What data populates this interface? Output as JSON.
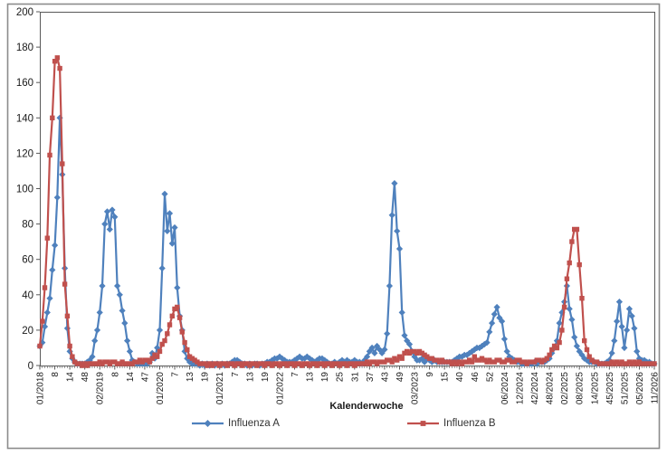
{
  "chart_data": {
    "type": "line",
    "title": "",
    "xlabel": "Kalenderwoche",
    "ylabel": "",
    "ylim": [
      0,
      200
    ],
    "y_tick_step": 20,
    "grid": "none",
    "legend_position": "bottom",
    "n_points": 247,
    "x_label_every_n_points": 6,
    "x_tick_labels": [
      "01/2018",
      "8",
      "14",
      "48",
      "02/2019",
      "8",
      "14",
      "47",
      "01/2020",
      "7",
      "13",
      "19",
      "01/2021",
      "7",
      "13",
      "19",
      "01/2022",
      "7",
      "13",
      "19",
      "25",
      "31",
      "37",
      "43",
      "49",
      "03/2023",
      "9",
      "15",
      "40",
      "46",
      "52",
      "06/2024",
      "12/2024",
      "42/2024",
      "48/2024",
      "02/2025",
      "08/2025",
      "14/2025",
      "45/2025",
      "51/2025",
      "05/2026",
      "11/2026"
    ],
    "series": [
      {
        "name": "Influenza A",
        "color": "#4F81BD",
        "marker": "diamond",
        "values": [
          11,
          13,
          22,
          30,
          38,
          54,
          68,
          95,
          140,
          108,
          55,
          21,
          8,
          4,
          2,
          1,
          1,
          1,
          1,
          2,
          3,
          5,
          14,
          20,
          30,
          45,
          80,
          87,
          77,
          88,
          84,
          45,
          40,
          31,
          24,
          14,
          8,
          3,
          2,
          1,
          1,
          1,
          1,
          1,
          2,
          7,
          4,
          10,
          20,
          55,
          97,
          76,
          86,
          69,
          78,
          44,
          28,
          20,
          8,
          4,
          2,
          1,
          1,
          1,
          0,
          1,
          0,
          1,
          0,
          1,
          0,
          1,
          0,
          1,
          0,
          1,
          1,
          2,
          3,
          3,
          2,
          1,
          1,
          0,
          1,
          0,
          1,
          1,
          0,
          1,
          1,
          2,
          2,
          3,
          4,
          4,
          5,
          4,
          3,
          2,
          2,
          2,
          3,
          4,
          5,
          4,
          4,
          5,
          4,
          3,
          2,
          3,
          4,
          4,
          3,
          2,
          1,
          1,
          2,
          1,
          2,
          3,
          2,
          3,
          2,
          2,
          3,
          2,
          2,
          1,
          3,
          5,
          8,
          10,
          7,
          11,
          9,
          7,
          9,
          18,
          45,
          85,
          103,
          76,
          66,
          30,
          17,
          14,
          12,
          8,
          5,
          3,
          3,
          4,
          2,
          4,
          3,
          2,
          3,
          2,
          2,
          2,
          2,
          2,
          2,
          2,
          3,
          4,
          5,
          5,
          6,
          6,
          7,
          8,
          9,
          10,
          10,
          11,
          12,
          13,
          19,
          24,
          29,
          33,
          27,
          25,
          15,
          8,
          5,
          4,
          3,
          2,
          2,
          1,
          1,
          1,
          1,
          1,
          2,
          1,
          2,
          2,
          2,
          3,
          4,
          7,
          10,
          14,
          24,
          30,
          36,
          45,
          32,
          26,
          16,
          11,
          8,
          6,
          4,
          3,
          2,
          2,
          2,
          1,
          1,
          1,
          1,
          2,
          3,
          7,
          14,
          25,
          36,
          22,
          10,
          20,
          32,
          28,
          21,
          8,
          4,
          3,
          3,
          2,
          2,
          1,
          1
        ]
      },
      {
        "name": "Influenza B",
        "color": "#C0504D",
        "marker": "square",
        "values": [
          11,
          25,
          44,
          72,
          119,
          140,
          172,
          174,
          168,
          114,
          46,
          28,
          11,
          5,
          2,
          1,
          1,
          0,
          1,
          0,
          1,
          1,
          1,
          1,
          2,
          1,
          2,
          2,
          1,
          2,
          2,
          1,
          1,
          2,
          1,
          1,
          1,
          1,
          2,
          2,
          3,
          2,
          3,
          3,
          2,
          4,
          6,
          5,
          8,
          12,
          14,
          18,
          23,
          28,
          32,
          33,
          27,
          19,
          13,
          9,
          5,
          4,
          3,
          2,
          1,
          1,
          1,
          0,
          1,
          0,
          1,
          1,
          0,
          1,
          1,
          0,
          1,
          1,
          0,
          1,
          1,
          0,
          1,
          1,
          0,
          1,
          1,
          0,
          1,
          1,
          0,
          1,
          1,
          0,
          1,
          1,
          0,
          1,
          1,
          0,
          1,
          1,
          0,
          1,
          1,
          0,
          1,
          1,
          0,
          1,
          1,
          0,
          1,
          1,
          0,
          1,
          1,
          0,
          1,
          1,
          0,
          1,
          1,
          0,
          1,
          1,
          0,
          1,
          1,
          1,
          1,
          2,
          1,
          2,
          2,
          1,
          2,
          2,
          2,
          3,
          3,
          2,
          4,
          3,
          5,
          4,
          7,
          8,
          7,
          8,
          8,
          7,
          8,
          7,
          6,
          5,
          4,
          4,
          3,
          3,
          2,
          3,
          2,
          2,
          2,
          1,
          2,
          1,
          2,
          1,
          2,
          2,
          3,
          2,
          5,
          3,
          3,
          4,
          3,
          2,
          3,
          2,
          2,
          3,
          3,
          2,
          2,
          3,
          3,
          2,
          2,
          3,
          3,
          2,
          2,
          1,
          2,
          2,
          2,
          3,
          3,
          2,
          3,
          4,
          6,
          9,
          11,
          10,
          13,
          20,
          33,
          49,
          58,
          70,
          77,
          77,
          57,
          38,
          14,
          9,
          5,
          3,
          2,
          2,
          1,
          1,
          1,
          1,
          1,
          2,
          1,
          2,
          1,
          2,
          1,
          1,
          2,
          1,
          2,
          1,
          2,
          1,
          1,
          1,
          1,
          1,
          1
        ]
      }
    ]
  },
  "colors": {
    "series_a": "#4F81BD",
    "series_b": "#C0504D",
    "axis": "#595959",
    "frame_border": "#8C8C8C",
    "text": "#1a1a1a"
  }
}
